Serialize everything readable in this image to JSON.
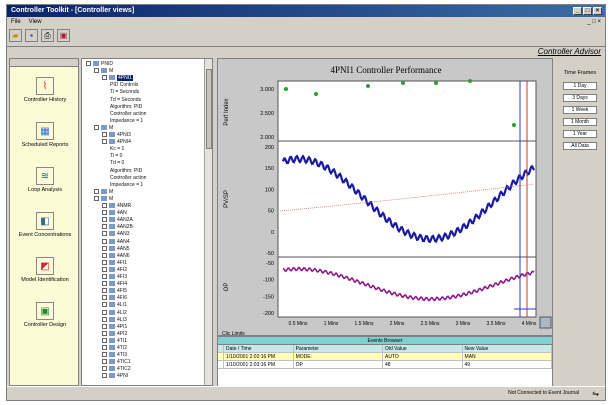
{
  "window": {
    "title": "Controller Toolkit - [Controller views]"
  },
  "menu": {
    "items": [
      "File",
      "View"
    ],
    "mdi": "_ □ ×"
  },
  "brand": "Controller Advisor",
  "outlook": {
    "items": [
      {
        "label": "Controller History",
        "icon": "chart-icon",
        "color": "#cc3333"
      },
      {
        "label": "Scheduled Reports",
        "icon": "report-icon",
        "color": "#1e6fd9"
      },
      {
        "label": "Loop Analysis",
        "icon": "loop-icon",
        "color": "#2255aa"
      },
      {
        "label": "Event Concentrations",
        "icon": "event-icon",
        "color": "#336699"
      },
      {
        "label": "Model Identification",
        "icon": "model-icon",
        "color": "#cc2244"
      },
      {
        "label": "Controller Design",
        "icon": "design-icon",
        "color": "#228833"
      }
    ]
  },
  "tree": {
    "nodes": [
      {
        "t": "PNID",
        "d": 0,
        "f": true
      },
      {
        "t": "M",
        "d": 1,
        "f": true
      },
      {
        "t": "4PNI1",
        "d": 2,
        "f": true,
        "sel": true
      },
      {
        "t": "PID Controls",
        "d": 3
      },
      {
        "t": "Ti = Seconds",
        "d": 3
      },
      {
        "t": "Td = Seconds",
        "d": 3
      },
      {
        "t": "Algorithm: PID",
        "d": 3
      },
      {
        "t": "Controller action",
        "d": 3
      },
      {
        "t": "Impedance = 1",
        "d": 3
      },
      {
        "t": "M",
        "d": 1,
        "f": true
      },
      {
        "t": "4PNI3",
        "d": 2,
        "f": true
      },
      {
        "t": "4PNI4",
        "d": 2,
        "f": true
      },
      {
        "t": "Kc = 1",
        "d": 3
      },
      {
        "t": "Ti = 0",
        "d": 3
      },
      {
        "t": "Td = 0",
        "d": 3
      },
      {
        "t": "Algorithm: PID",
        "d": 3
      },
      {
        "t": "Controller action",
        "d": 3
      },
      {
        "t": "Impedance = 1",
        "d": 3
      },
      {
        "t": "M",
        "d": 1,
        "f": true
      },
      {
        "t": "M",
        "d": 1,
        "f": true
      },
      {
        "t": "4NMR",
        "d": 2,
        "f": true
      },
      {
        "t": "4AN",
        "d": 2,
        "f": true
      },
      {
        "t": "4AN2A",
        "d": 2,
        "f": true
      },
      {
        "t": "4AN2B",
        "d": 2,
        "f": true
      },
      {
        "t": "4AN3",
        "d": 2,
        "f": true
      },
      {
        "t": "4AN4",
        "d": 2,
        "f": true
      },
      {
        "t": "4AN5",
        "d": 2,
        "f": true
      },
      {
        "t": "4AN6",
        "d": 2,
        "f": true
      },
      {
        "t": "4FI1",
        "d": 2,
        "f": true
      },
      {
        "t": "4FI2",
        "d": 2,
        "f": true
      },
      {
        "t": "4FI3",
        "d": 2,
        "f": true
      },
      {
        "t": "4FI4",
        "d": 2,
        "f": true
      },
      {
        "t": "4FI5",
        "d": 2,
        "f": true
      },
      {
        "t": "4FI6",
        "d": 2,
        "f": true
      },
      {
        "t": "4LI1",
        "d": 2,
        "f": true
      },
      {
        "t": "4LI2",
        "d": 2,
        "f": true
      },
      {
        "t": "4LI3",
        "d": 2,
        "f": true
      },
      {
        "t": "4PI1",
        "d": 2,
        "f": true
      },
      {
        "t": "4PI2",
        "d": 2,
        "f": true
      },
      {
        "t": "4TI1",
        "d": 2,
        "f": true
      },
      {
        "t": "4TI2",
        "d": 2,
        "f": true
      },
      {
        "t": "4TI3",
        "d": 2,
        "f": true
      },
      {
        "t": "4TIC1",
        "d": 2,
        "f": true
      },
      {
        "t": "4TIC2",
        "d": 2,
        "f": true
      },
      {
        "t": "4PNI",
        "d": 2,
        "f": true
      }
    ]
  },
  "chart": {
    "title": "4PNI1   Controller Performance",
    "panels": [
      {
        "ylabel": "Perf Index",
        "ticks": [
          "3.000",
          "2.500",
          "2.000"
        ]
      },
      {
        "ylabel": "PV/SP",
        "ticks": [
          "200",
          "150",
          "100",
          "50",
          "0",
          "-50"
        ]
      },
      {
        "ylabel": "OP",
        "ticks": [
          "-50",
          "-100",
          "-150",
          "-200"
        ]
      }
    ],
    "xticks": [
      "0.5 Mins",
      "1 Mins",
      "1.5 Mins",
      "2 Mins",
      "2.5 Mins",
      "3 Mins",
      "3.5 Mins",
      "4 Mins"
    ],
    "footer_label": "Clic Limits",
    "colors": {
      "pv": "#1a1aa0",
      "sp": "#e07070",
      "op": "#8a1a8a",
      "perf": "#2aa22a"
    }
  },
  "rightpane": {
    "caption": "Time Frames",
    "buttons": [
      "1 Day",
      "3 Days",
      "1 Week",
      "1 Month",
      "1 Year",
      "All Data"
    ]
  },
  "grid": {
    "title": "Events Browser",
    "headers": [
      "Date / Time",
      "Parameter",
      "Old Value",
      "New Value"
    ],
    "rows": [
      [
        "1/10/2001 2:02:16 PM",
        "MODE",
        "AUTO",
        "MAN"
      ],
      [
        "1/10/2001 2:03:16 PM",
        "OP",
        "48",
        "49"
      ]
    ]
  },
  "status": {
    "text": "Not Connected to Event Journal"
  }
}
